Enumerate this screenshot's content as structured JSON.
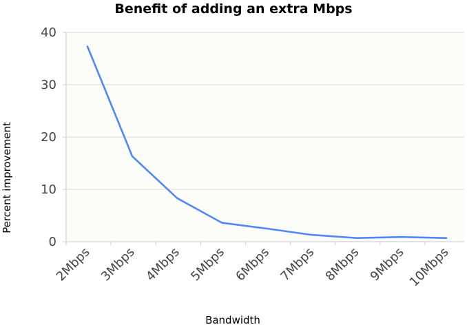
{
  "chart_data": {
    "type": "line",
    "title": "Benefit of adding an extra Mbps",
    "xlabel": "Bandwidth",
    "ylabel": "Percent improvement",
    "categories": [
      "2Mbps",
      "3Mbps",
      "4Mbps",
      "5Mbps",
      "6Mbps",
      "7Mbps",
      "8Mbps",
      "9Mbps",
      "10Mbps"
    ],
    "series": [
      {
        "values": [
          37.3,
          16.3,
          8.3,
          3.6,
          2.5,
          1.3,
          0.7,
          0.9,
          0.7
        ],
        "color": "#4f88f5"
      }
    ],
    "ylim": [
      0,
      40
    ],
    "yticks": [
      0,
      10,
      20,
      30,
      40
    ],
    "grid": true,
    "legend": "none",
    "background": "#fcfcf8"
  }
}
